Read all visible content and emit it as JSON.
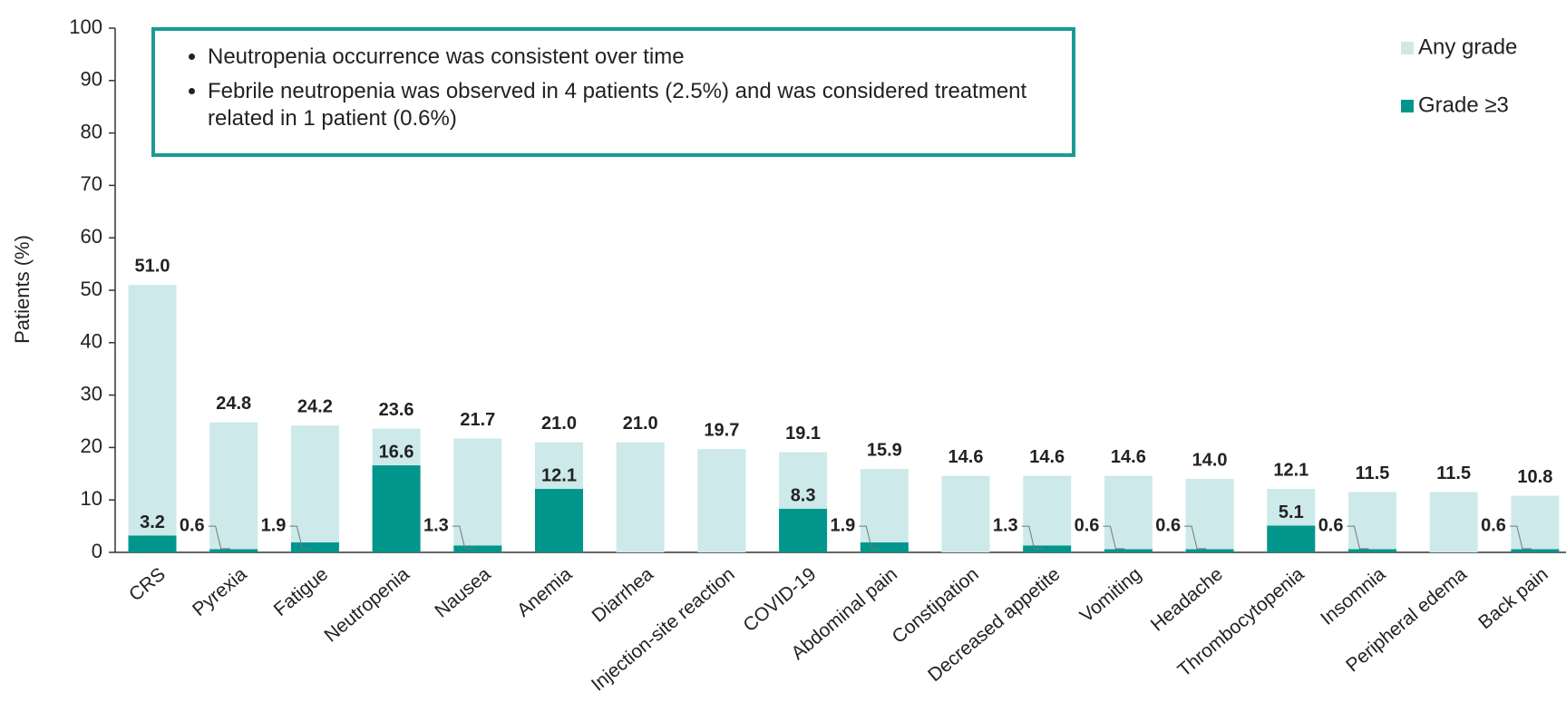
{
  "chart_data": {
    "type": "bar",
    "y_label": "Patients (%)",
    "categories": [
      "CRS",
      "Pyrexia",
      "Fatigue",
      "Neutropenia",
      "Nausea",
      "Anemia",
      "Diarrhea",
      "Injection-site reaction",
      "COVID-19",
      "Abdominal pain",
      "Constipation",
      "Decreased appetite",
      "Vomiting",
      "Headache",
      "Thrombocytopenia",
      "Insomnia",
      "Peripheral edema",
      "Back pain"
    ],
    "series": [
      {
        "name": "Any grade",
        "color": "#cde9e9",
        "values": [
          51.0,
          24.8,
          24.2,
          23.6,
          21.7,
          21.0,
          21.0,
          19.7,
          19.1,
          15.9,
          14.6,
          14.6,
          14.6,
          14.0,
          12.1,
          11.5,
          11.5,
          10.8
        ],
        "value_labels": [
          "51.0",
          "24.8",
          "24.2",
          "23.6",
          "21.7",
          "21.0",
          "21.0",
          "19.7",
          "19.1",
          "15.9",
          "14.6",
          "14.6",
          "14.6",
          "14.0",
          "12.1",
          "11.5",
          "11.5",
          "10.8"
        ]
      },
      {
        "name": "Grade ≥3",
        "color": "#00968b",
        "values": [
          3.2,
          0.6,
          1.9,
          16.6,
          1.3,
          12.1,
          null,
          null,
          8.3,
          1.9,
          null,
          1.3,
          0.6,
          0.6,
          5.1,
          0.6,
          null,
          0.6
        ],
        "value_labels": [
          "3.2",
          "0.6",
          "1.9",
          "16.6",
          "1.3",
          "12.1",
          null,
          null,
          "8.3",
          "1.9",
          null,
          "1.3",
          "0.6",
          "0.6",
          "5.1",
          "0.6",
          null,
          "0.6"
        ]
      }
    ],
    "ylim": [
      0,
      100
    ],
    "yticks": [
      0,
      10,
      20,
      30,
      40,
      50,
      60,
      70,
      80,
      90,
      100
    ],
    "legend": "upper right",
    "annotations": [
      "Neutropenia occurrence was consistent over time",
      "Febrile neutropenia was observed in 4 patients (2.5%) and was considered treatment related in 1 patient (0.6%)"
    ]
  }
}
